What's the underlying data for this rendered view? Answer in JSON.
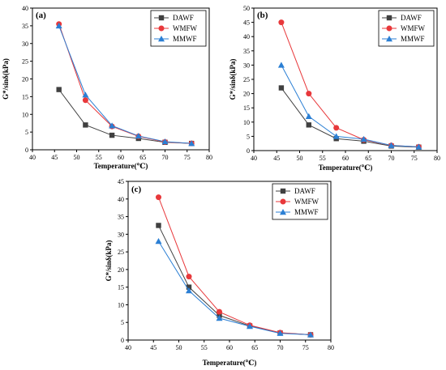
{
  "chart_data": [
    {
      "type": "line",
      "panel_label": "(a)",
      "xlabel": "Temperature(℃)",
      "ylabel": "G*/sinδ(kPa)",
      "xlim": [
        40,
        80
      ],
      "ylim": [
        0,
        40
      ],
      "xticks": [
        40,
        45,
        50,
        55,
        60,
        65,
        70,
        75,
        80
      ],
      "yticks": [
        0,
        5,
        10,
        15,
        20,
        25,
        30,
        35,
        40
      ],
      "x": [
        46,
        52,
        58,
        64,
        70,
        76
      ],
      "legend_position": "top-right",
      "series": [
        {
          "name": "DAWF",
          "color": "#404040",
          "marker": "square",
          "values": [
            17.0,
            7.0,
            4.1,
            3.2,
            2.1,
            1.8
          ]
        },
        {
          "name": "WMFW",
          "color": "#e8383b",
          "marker": "circle",
          "values": [
            35.5,
            14.0,
            6.6,
            3.8,
            2.2,
            1.8
          ]
        },
        {
          "name": "MMWF",
          "color": "#2b7fd4",
          "marker": "triangle",
          "values": [
            35.0,
            15.5,
            6.8,
            3.9,
            2.3,
            1.8
          ]
        }
      ]
    },
    {
      "type": "line",
      "panel_label": "(b)",
      "xlabel": "Temperature(℃)",
      "ylabel": "G*/sinδ(kPa)",
      "xlim": [
        40,
        80
      ],
      "ylim": [
        0,
        50
      ],
      "xticks": [
        40,
        45,
        50,
        55,
        60,
        65,
        70,
        75,
        80
      ],
      "yticks": [
        0,
        5,
        10,
        15,
        20,
        25,
        30,
        35,
        40,
        45,
        50
      ],
      "x": [
        46,
        52,
        58,
        64,
        70,
        76
      ],
      "legend_position": "top-right",
      "series": [
        {
          "name": "DAWF",
          "color": "#404040",
          "marker": "square",
          "values": [
            22.0,
            9.0,
            4.2,
            3.3,
            1.6,
            1.2
          ]
        },
        {
          "name": "WMFW",
          "color": "#e8383b",
          "marker": "circle",
          "values": [
            45.0,
            20.0,
            8.0,
            3.8,
            1.8,
            1.3
          ]
        },
        {
          "name": "MMWF",
          "color": "#2b7fd4",
          "marker": "triangle",
          "values": [
            30.0,
            12.0,
            5.0,
            4.0,
            1.8,
            1.3
          ]
        }
      ]
    },
    {
      "type": "line",
      "panel_label": "(c)",
      "xlabel": "Temperature(℃)",
      "ylabel": "G*/sinδ(kPa)",
      "xlim": [
        40,
        80
      ],
      "ylim": [
        0,
        45
      ],
      "xticks": [
        40,
        45,
        50,
        55,
        60,
        65,
        70,
        75,
        80
      ],
      "yticks": [
        0,
        5,
        10,
        15,
        20,
        25,
        30,
        35,
        40,
        45
      ],
      "x": [
        46,
        52,
        58,
        64,
        70,
        76
      ],
      "legend_position": "top-right",
      "series": [
        {
          "name": "DAWF",
          "color": "#404040",
          "marker": "square",
          "values": [
            32.5,
            15.0,
            7.0,
            4.0,
            2.0,
            1.5
          ]
        },
        {
          "name": "WMFW",
          "color": "#e8383b",
          "marker": "circle",
          "values": [
            40.5,
            18.0,
            8.0,
            4.2,
            2.1,
            1.5
          ]
        },
        {
          "name": "MMWF",
          "color": "#2b7fd4",
          "marker": "triangle",
          "values": [
            28.0,
            14.0,
            6.2,
            3.9,
            1.9,
            1.5
          ]
        }
      ]
    }
  ]
}
